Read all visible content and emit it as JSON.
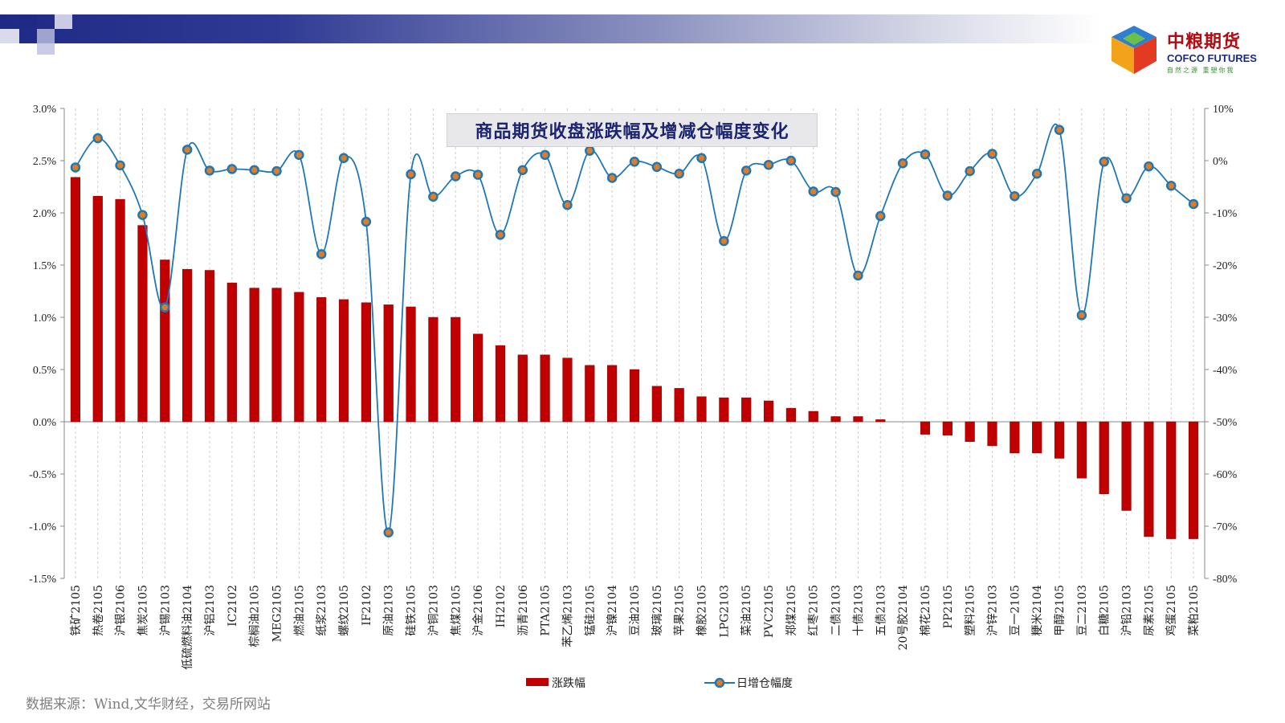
{
  "chart_data": {
    "type": "bar+line",
    "title": "商品期货收盘涨跌幅及增减仓幅度变化",
    "categories": [
      "铁矿2105",
      "热卷2105",
      "沪银2106",
      "焦炭2105",
      "沪锡2103",
      "低硫燃料油2104",
      "沪铝2103",
      "IC2102",
      "棕榈油2105",
      "MEG2105",
      "燃油2105",
      "纸浆2103",
      "螺纹2105",
      "IF2102",
      "原油2103",
      "硅铁2105",
      "沪铜2103",
      "焦煤2105",
      "沪金2106",
      "IH2102",
      "沥青2106",
      "PTA2105",
      "苯乙烯2103",
      "锰硅2105",
      "沪镍2104",
      "豆油2105",
      "玻璃2105",
      "苹果2105",
      "橡胶2105",
      "LPG2103",
      "菜油2105",
      "PVC2105",
      "郑煤2105",
      "红枣2105",
      "二债2103",
      "十债2103",
      "五债2103",
      "20号胶2104",
      "棉花2105",
      "PP2105",
      "塑料2105",
      "沪锌2103",
      "豆一2105",
      "粳米2104",
      "甲醇2105",
      "豆二2103",
      "白糖2105",
      "沪铅2103",
      "尿素2105",
      "鸡蛋2105",
      "菜粕2105"
    ],
    "series": [
      {
        "name": "涨跌幅",
        "type": "bar",
        "axis": "left",
        "color": "#c00000",
        "values": [
          2.34,
          2.16,
          2.13,
          1.88,
          1.55,
          1.46,
          1.45,
          1.33,
          1.28,
          1.28,
          1.24,
          1.19,
          1.17,
          1.14,
          1.12,
          1.1,
          1.0,
          1.0,
          0.84,
          0.73,
          0.64,
          0.64,
          0.61,
          0.54,
          0.54,
          0.5,
          0.34,
          0.32,
          0.24,
          0.23,
          0.23,
          0.2,
          0.13,
          0.1,
          0.05,
          0.05,
          0.02,
          0.0,
          -0.12,
          -0.13,
          -0.19,
          -0.23,
          -0.3,
          -0.3,
          -0.35,
          -0.54,
          -0.69,
          -0.85,
          -1.1,
          -1.12,
          -1.12
        ]
      },
      {
        "name": "日增仓幅度",
        "type": "line",
        "axis": "right",
        "color": "#1f77b4",
        "marker_fill": "#e07b28",
        "values": [
          -1.3,
          4.3,
          -0.9,
          -10.4,
          -28.1,
          2.1,
          -1.9,
          -1.6,
          -1.8,
          -2.0,
          1.1,
          -17.9,
          0.5,
          -11.7,
          -71.2,
          -2.6,
          -6.9,
          -3.0,
          -2.7,
          -14.2,
          -1.8,
          1.1,
          -8.5,
          1.9,
          -3.3,
          -0.2,
          -1.2,
          -2.5,
          0.5,
          -15.4,
          -1.9,
          -0.8,
          0.0,
          -5.9,
          -6.0,
          -22.0,
          -10.6,
          -0.5,
          1.2,
          -6.7,
          -2.0,
          1.3,
          -6.8,
          -2.5,
          5.9,
          -29.6,
          -0.2,
          -7.2,
          -1.1,
          -4.8,
          -8.3
        ]
      }
    ],
    "y_left": {
      "ylim": [
        -1.5,
        3.0
      ],
      "ticks": [
        3.0,
        2.5,
        2.0,
        1.5,
        1.0,
        0.5,
        0.0,
        -0.5,
        -1.0,
        -1.5
      ],
      "tick_labels": [
        "3.0%",
        "2.5%",
        "2.0%",
        "1.5%",
        "1.0%",
        "0.5%",
        "0.0%",
        "-0.5%",
        "-1.0%",
        "-1.5%"
      ]
    },
    "y_right": {
      "ylim": [
        -80,
        10
      ],
      "ticks": [
        10,
        0,
        -10,
        -20,
        -30,
        -40,
        -50,
        -60,
        -70,
        -80
      ],
      "tick_labels": [
        "10%",
        "0%",
        "-10%",
        "-20%",
        "-30%",
        "-40%",
        "-50%",
        "-60%",
        "-70%",
        "-80%"
      ]
    },
    "grid": "vertical dashed",
    "legend_position": "bottom"
  },
  "logo": {
    "cn": "中粮期货",
    "en": "COFCO FUTURES",
    "slogan": "自然之源 重塑你我"
  },
  "source_note": "数据来源：Wind,文华财经，交易所网站"
}
